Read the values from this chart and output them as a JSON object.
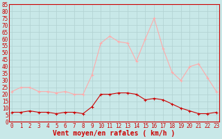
{
  "xlabel": "Vent moyen/en rafales ( km/h )",
  "bg_color": "#c8e8e8",
  "grid_color": "#b0d0d0",
  "avg_color": "#cc0000",
  "gust_color": "#ffaaaa",
  "hours": [
    0,
    1,
    2,
    3,
    4,
    5,
    6,
    7,
    8,
    9,
    10,
    11,
    12,
    13,
    14,
    15,
    16,
    17,
    18,
    19,
    20,
    21,
    22,
    23
  ],
  "avg_wind": [
    7,
    7,
    8,
    7,
    7,
    6,
    7,
    7,
    6,
    11,
    20,
    20,
    21,
    21,
    20,
    16,
    17,
    16,
    13,
    10,
    8,
    6,
    6,
    7
  ],
  "gust_wind": [
    22,
    25,
    25,
    22,
    22,
    21,
    22,
    20,
    20,
    34,
    57,
    62,
    58,
    57,
    44,
    60,
    75,
    53,
    36,
    30,
    40,
    42,
    32,
    22
  ],
  "ylim": [
    0,
    85
  ],
  "ytick_step": 5,
  "xticks": [
    0,
    1,
    2,
    3,
    4,
    5,
    6,
    7,
    8,
    9,
    10,
    11,
    12,
    13,
    14,
    15,
    16,
    17,
    18,
    19,
    20,
    21,
    22,
    23
  ],
  "tick_fontsize": 5.5,
  "xlabel_fontsize": 7,
  "marker_size": 3,
  "line_width": 0.8,
  "spine_color": "#cc0000",
  "xlabel_color": "#cc0000",
  "tick_color": "#cc0000"
}
